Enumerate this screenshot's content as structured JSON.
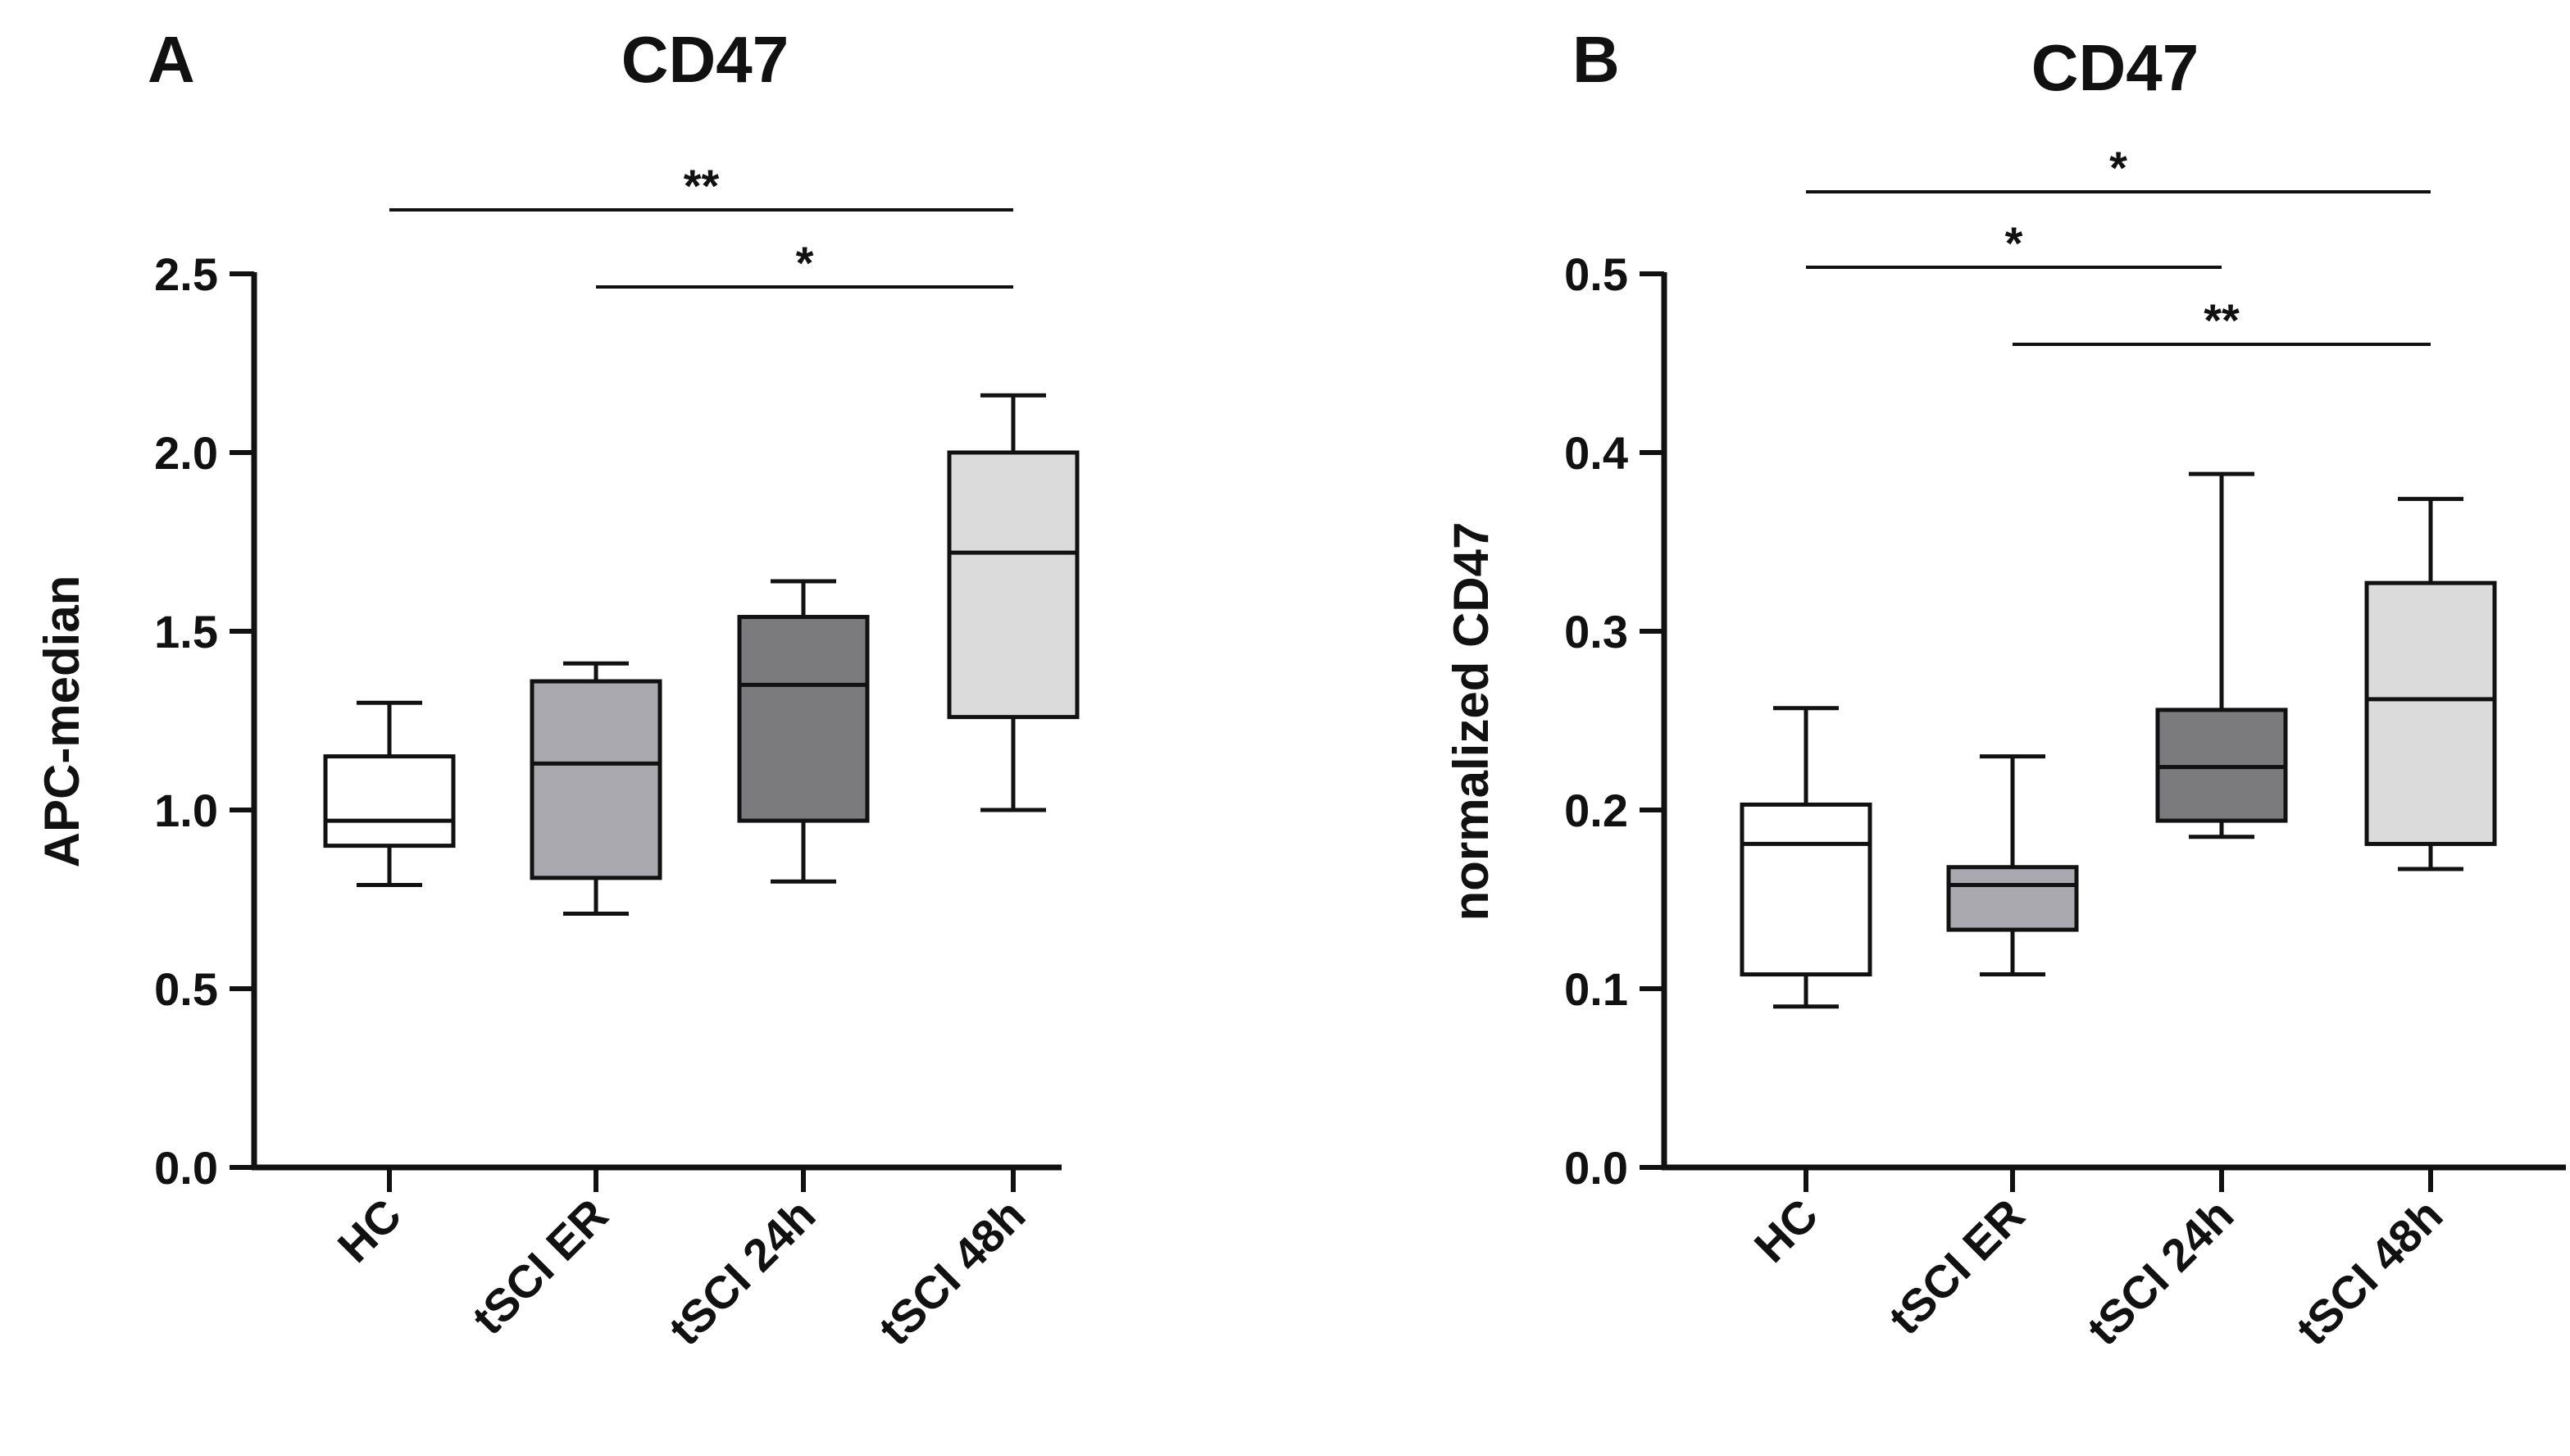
{
  "chart_data": [
    {
      "panel": "A",
      "type": "box",
      "title": "CD47",
      "xlabel": "",
      "ylabel": "APC-median",
      "ylim": [
        0,
        2.5
      ],
      "yticks": [
        "0.0",
        "0.5",
        "1.0",
        "1.5",
        "2.0",
        "2.5"
      ],
      "grid": false,
      "categories": [
        "HC",
        "tSCI ER",
        "tSCI 24h",
        "tSCI 48h"
      ],
      "boxes": [
        {
          "category": "HC",
          "min": 0.79,
          "q1": 0.9,
          "median": 0.97,
          "q3": 1.15,
          "max": 1.3,
          "fill": "#ffffff"
        },
        {
          "category": "tSCI ER",
          "min": 0.71,
          "q1": 0.81,
          "median": 1.13,
          "q3": 1.36,
          "max": 1.41,
          "fill": "#a9a9af"
        },
        {
          "category": "tSCI 24h",
          "min": 0.8,
          "q1": 0.97,
          "median": 1.35,
          "q3": 1.54,
          "max": 1.64,
          "fill": "#7b7b7e"
        },
        {
          "category": "tSCI 48h",
          "min": 1.0,
          "q1": 1.26,
          "median": 1.72,
          "q3": 2.0,
          "max": 2.16,
          "fill": "#dbdbdb"
        }
      ],
      "significance": [
        {
          "from": 0,
          "to": 3,
          "label": "**"
        },
        {
          "from": 1,
          "to": 3,
          "label": "*"
        }
      ]
    },
    {
      "panel": "B",
      "type": "box",
      "title": "CD47",
      "xlabel": "",
      "ylabel": "normalized CD47",
      "ylim": [
        0,
        0.5
      ],
      "yticks": [
        "0.0",
        "0.1",
        "0.2",
        "0.3",
        "0.4",
        "0.5"
      ],
      "grid": false,
      "categories": [
        "HC",
        "tSCI ER",
        "tSCI 24h",
        "tSCI 48h"
      ],
      "boxes": [
        {
          "category": "HC",
          "min": 0.09,
          "q1": 0.108,
          "median": 0.181,
          "q3": 0.203,
          "max": 0.257,
          "fill": "#ffffff"
        },
        {
          "category": "tSCI ER",
          "min": 0.108,
          "q1": 0.133,
          "median": 0.158,
          "q3": 0.168,
          "max": 0.23,
          "fill": "#a9a9af"
        },
        {
          "category": "tSCI 24h",
          "min": 0.185,
          "q1": 0.194,
          "median": 0.224,
          "q3": 0.256,
          "max": 0.388,
          "fill": "#7b7b7e"
        },
        {
          "category": "tSCI 48h",
          "min": 0.167,
          "q1": 0.181,
          "median": 0.262,
          "q3": 0.327,
          "max": 0.374,
          "fill": "#dbdbdb"
        }
      ],
      "significance": [
        {
          "from": 0,
          "to": 3,
          "label": "*"
        },
        {
          "from": 0,
          "to": 2,
          "label": "*"
        },
        {
          "from": 1,
          "to": 3,
          "label": "**"
        }
      ]
    }
  ]
}
